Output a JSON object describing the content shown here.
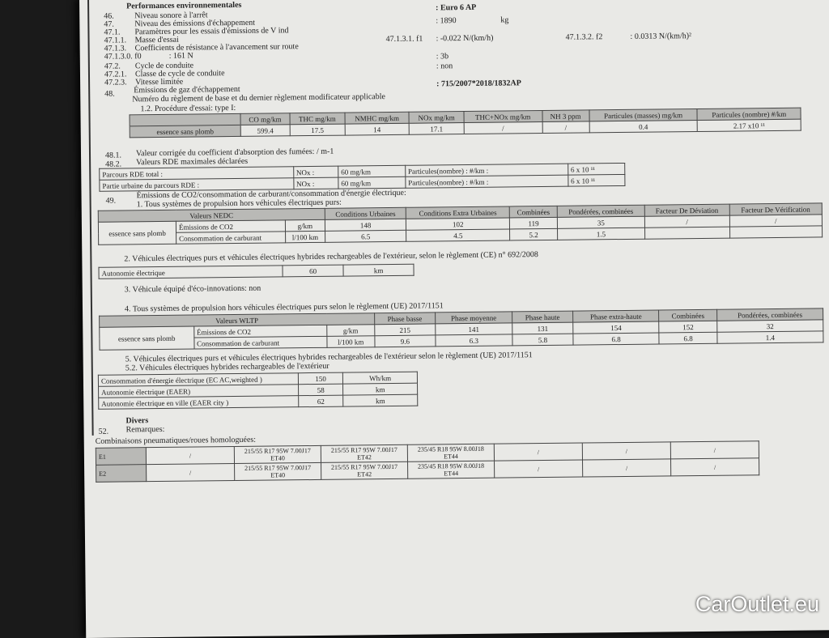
{
  "header": {
    "section": "Performances environnementales",
    "euro": ": Euro 6 AP"
  },
  "lines": [
    {
      "num": "46.",
      "label": "Niveau sonore à l'arrêt"
    },
    {
      "num": "47.",
      "label": "Niveau des émissions d'échappement"
    },
    {
      "num": "47.1.",
      "label": "Paramètres pour les essais d'émissions de V ind"
    },
    {
      "num": "47.1.1.",
      "label": "Masse d'essai",
      "value": ": 1890",
      "unit": "kg"
    },
    {
      "num": "47.1.3.",
      "label": "Coefficients de résistance à l'avancement sur route",
      "f1_label": "47.1.3.1. f1",
      "f1": ": -0.022 N/(km/h)",
      "f2_label": "47.1.3.2. f2",
      "f2": ": 0.0313 N/(km/h)²"
    },
    {
      "num": "47.1.3.0. f0",
      "label": ": 161 N"
    },
    {
      "num": "47.2.",
      "label": "Cycle de conduite",
      "value": ": 3b"
    },
    {
      "num": "47.2.1.",
      "label": "Classe de cycle de conduite",
      "value": ": non"
    },
    {
      "num": "47.2.3.",
      "label": "Vitesse limitée"
    },
    {
      "num": "48.",
      "label": "Émissions de gaz d'échappement"
    },
    {
      "num": "",
      "label": "Numéro du règlement de base et du dernier règlement modificateur applicable",
      "value": ": 715/2007*2018/1832AP"
    }
  ],
  "emissions": {
    "title": "1.2. Procédure d'essai: type I:",
    "headers": [
      "CO mg/km",
      "THC mg/km",
      "NMHC mg/km",
      "NOx mg/km",
      "THC+NOx mg/km",
      "NH 3 ppm",
      "Particules (masses) mg/km",
      "Particules (nombre) #/km"
    ],
    "row_label": "essence sans plomb",
    "values": [
      "599.4",
      "17.5",
      "14",
      "17.1",
      "/",
      "/",
      "0.4",
      "2.17 x10 ¹¹"
    ]
  },
  "smoke": {
    "num": "48.1.",
    "label": "Valeur corrigée du coefficient d'absorption des fumées: / m-1"
  },
  "rde": {
    "num": "48.2.",
    "label": "Valeurs RDE maximales déclarées",
    "rows": [
      {
        "label": "Parcours RDE total :",
        "nox": "NOx :",
        "nox_val": "60 mg/km",
        "pn": "Particules(nombre) : #/km :",
        "pn_val": "6 x 10 ¹¹"
      },
      {
        "label": "Partie urbaine du parcours RDE :",
        "nox": "NOx :",
        "nox_val": "60 mg/km",
        "pn": "Particules(nombre) : #/km :",
        "pn_val": "6 x 10 ¹¹"
      }
    ]
  },
  "co2": {
    "num": "49.",
    "label": "Émissions de CO2/consommation de carburant/consommation d'énergie électrique:",
    "sub1": "1. Tous systèmes de propulsion hors véhicules électriques purs:",
    "nedc": {
      "title": "Valeurs NEDC",
      "headers": [
        "Conditions Urbaines",
        "Conditions Extra Urbaines",
        "Combinées",
        "Pondérées, combinées",
        "Facteur De Déviation",
        "Facteur De Vérification"
      ],
      "fuel": "essence sans plomb",
      "rows": [
        {
          "label": "Émissions de CO2",
          "unit": "g/km",
          "values": [
            "148",
            "102",
            "119",
            "35",
            "/",
            "/"
          ]
        },
        {
          "label": "Consommation de carburant",
          "unit": "l/100 km",
          "values": [
            "6.5",
            "4.5",
            "5.2",
            "1.5",
            "",
            ""
          ]
        }
      ]
    },
    "sub2": "2. Véhicules électriques purs et véhicules électriques hybrides rechargeables de l'extérieur, selon le règlement (CE) n° 692/2008",
    "autonomie": {
      "label": "Autonomie électrique",
      "value": "60",
      "unit": "km"
    },
    "sub3": "3. Véhicule équipé d'éco-innovations: non",
    "sub4": "4. Tous systèmes de propulsion hors véhicules électriques purs selon le règlement (UE) 2017/1151",
    "wltp": {
      "title": "Valeurs WLTP",
      "headers": [
        "Phase basse",
        "Phase moyenne",
        "Phase haute",
        "Phase extra-haute",
        "Combinées",
        "Pondérées, combinées"
      ],
      "fuel": "essence sans plomb",
      "rows": [
        {
          "label": "Émissions de CO2",
          "unit": "g/km",
          "values": [
            "215",
            "141",
            "131",
            "154",
            "152",
            "32"
          ]
        },
        {
          "label": "Consommation de carburant",
          "unit": "l/100 km",
          "values": [
            "9.6",
            "6.3",
            "5.8",
            "6.8",
            "6.8",
            "1.4"
          ]
        }
      ]
    },
    "sub5": "5. Véhicules électriques purs et véhicules électriques hybrides rechargeables de l'extérieur selon le règlement (UE) 2017/1151",
    "sub52": "5.2. Véhicules électriques hybrides rechargeables de l'extérieur",
    "phev": [
      {
        "label": "Consommation d'énergie électrique (EC AC,weighted )",
        "value": "150",
        "unit": "Wh/km"
      },
      {
        "label": "Autonomie électrique (EAER)",
        "value": "58",
        "unit": "km"
      },
      {
        "label": "Autonomie électrique en ville (EAER city )",
        "value": "62",
        "unit": "km"
      }
    ]
  },
  "divers": {
    "title": "Divers",
    "num": "52.",
    "remarks": "Remarques:",
    "tyres_label": "Combinaisons pneumatiques/roues homologuées:",
    "rows": [
      {
        "id": "E1",
        "c": [
          "/",
          "215/55 R17 95W 7.00J17 ET40",
          "215/55 R17 95W 7.00J17 ET42",
          "235/45 R18 95W 8.00J18 ET44",
          "/",
          "/",
          "/"
        ]
      },
      {
        "id": "E2",
        "c": [
          "/",
          "215/55 R17 95W 7.00J17 ET40",
          "215/55 R17 95W 7.00J17 ET42",
          "235/45 R18 95W 8.00J18 ET44",
          "/",
          "/",
          "/"
        ]
      }
    ]
  },
  "watermark": "CarOutlet.eu"
}
